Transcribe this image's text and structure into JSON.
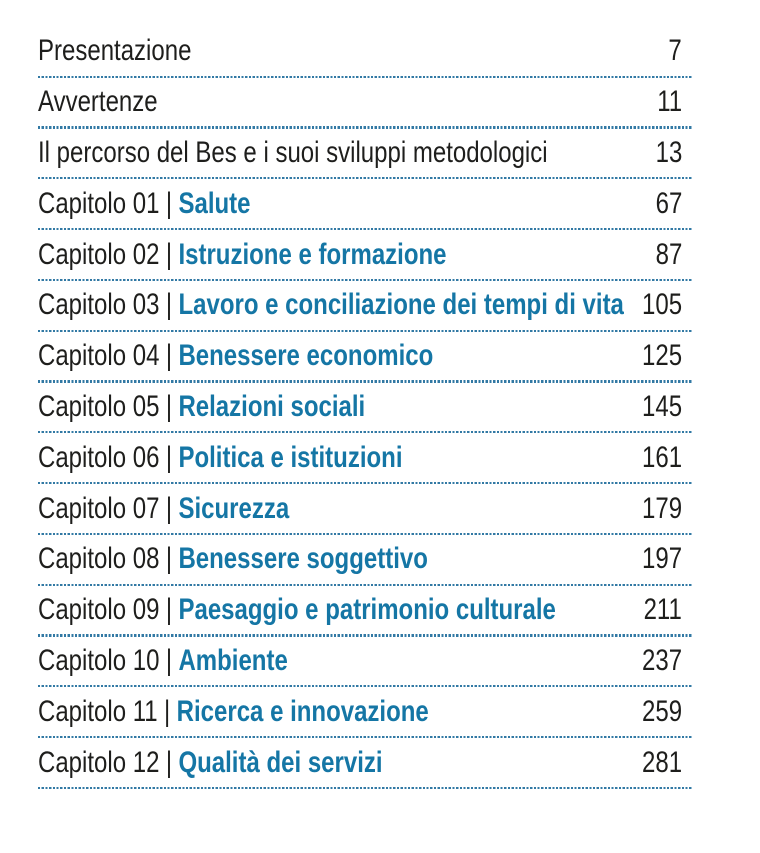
{
  "colors": {
    "background": "#ffffff",
    "text": "#1e1e1c",
    "chapter_title_blue": "#1576a5",
    "divider_dots_blue": "#3279a4"
  },
  "toc": {
    "entries": [
      {
        "prefix": "",
        "separator": "",
        "title": "Presentazione",
        "page": "7"
      },
      {
        "prefix": "",
        "separator": "",
        "title": "Avvertenze",
        "page": "11"
      },
      {
        "prefix": "",
        "separator": "",
        "title": "Il percorso del Bes e i suoi sviluppi metodologici",
        "page": "13"
      },
      {
        "prefix": "Capitolo 01",
        "separator": "|",
        "title": "Salute",
        "page": "67"
      },
      {
        "prefix": "Capitolo 02",
        "separator": "|",
        "title": "Istruzione e formazione",
        "page": "87"
      },
      {
        "prefix": "Capitolo 03",
        "separator": "|",
        "title": "Lavoro e conciliazione dei tempi di vita",
        "page": "105"
      },
      {
        "prefix": "Capitolo 04",
        "separator": "|",
        "title": "Benessere economico",
        "page": "125"
      },
      {
        "prefix": "Capitolo 05",
        "separator": "|",
        "title": "Relazioni sociali",
        "page": "145"
      },
      {
        "prefix": "Capitolo 06",
        "separator": "|",
        "title": "Politica e istituzioni",
        "page": "161"
      },
      {
        "prefix": "Capitolo 07",
        "separator": "|",
        "title": "Sicurezza",
        "page": "179"
      },
      {
        "prefix": "Capitolo 08",
        "separator": "|",
        "title": "Benessere soggettivo",
        "page": "197"
      },
      {
        "prefix": "Capitolo 09",
        "separator": "|",
        "title": "Paesaggio e patrimonio culturale",
        "page": "211"
      },
      {
        "prefix": "Capitolo 10",
        "separator": "|",
        "title": "Ambiente",
        "page": "237"
      },
      {
        "prefix": "Capitolo 11",
        "separator": "|",
        "title": "Ricerca e innovazione",
        "page": "259"
      },
      {
        "prefix": "Capitolo 12",
        "separator": "|",
        "title": "Qualità dei servizi",
        "page": "281"
      }
    ]
  }
}
